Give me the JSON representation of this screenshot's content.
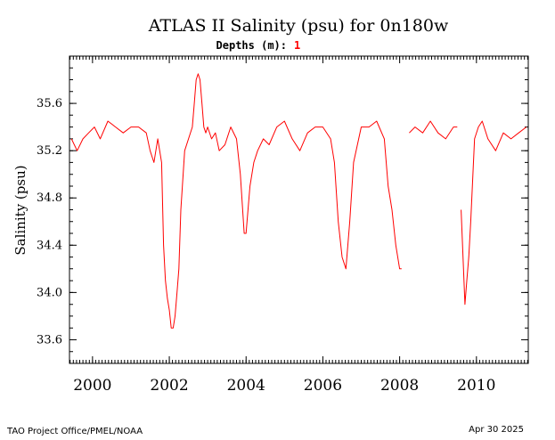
{
  "chart_data": {
    "type": "line",
    "title": "ATLAS II Salinity (psu) for 0n180w",
    "subtitle_label": "Depths (m):",
    "depth_value": "1",
    "ylabel": "Salinity (psu)",
    "xlabel": "",
    "xlim": [
      1999.4,
      2011.35
    ],
    "ylim": [
      33.4,
      36.0
    ],
    "xticks": [
      2000,
      2002,
      2004,
      2006,
      2008,
      2010
    ],
    "xtick_labels": [
      "2000",
      "2002",
      "2004",
      "2006",
      "2008",
      "2010"
    ],
    "yticks": [
      33.6,
      34.0,
      34.4,
      34.8,
      35.2,
      35.6
    ],
    "ytick_labels": [
      "33.6",
      "34.0",
      "34.4",
      "34.8",
      "35.2",
      "35.6"
    ],
    "grid": false,
    "colors": {
      "series": "#ff0000",
      "axis": "#000000",
      "depth": "#ff0000"
    },
    "series": [
      {
        "name": "1",
        "segments": [
          {
            "x": [
              1999.45,
              1999.6,
              1999.75,
              1999.9,
              2000.05,
              2000.2,
              2000.4,
              2000.6,
              2000.8,
              2001.0,
              2001.2,
              2001.4,
              2001.5,
              2001.6,
              2001.7,
              2001.8,
              2001.85,
              2001.9,
              2001.95,
              2002.0,
              2002.05,
              2002.1,
              2002.15,
              2002.2,
              2002.25,
              2002.3,
              2002.4,
              2002.5,
              2002.6,
              2002.65,
              2002.7,
              2002.75,
              2002.8,
              2002.85,
              2002.9,
              2002.95,
              2003.0,
              2003.1,
              2003.2,
              2003.3,
              2003.45,
              2003.6,
              2003.75,
              2003.85,
              2003.95,
              2004.0,
              2004.1,
              2004.2,
              2004.3,
              2004.45,
              2004.6,
              2004.8,
              2005.0,
              2005.2,
              2005.4,
              2005.6,
              2005.8,
              2006.0,
              2006.2,
              2006.3,
              2006.4,
              2006.5,
              2006.6,
              2006.7,
              2006.8,
              2007.0,
              2007.2,
              2007.4,
              2007.6,
              2007.7,
              2007.8,
              2007.9,
              2008.0,
              2008.05
            ],
            "y": [
              35.3,
              35.2,
              35.3,
              35.35,
              35.4,
              35.3,
              35.45,
              35.4,
              35.35,
              35.4,
              35.4,
              35.35,
              35.2,
              35.1,
              35.3,
              35.1,
              34.4,
              34.1,
              33.95,
              33.85,
              33.7,
              33.7,
              33.8,
              34.0,
              34.2,
              34.7,
              35.2,
              35.3,
              35.4,
              35.6,
              35.8,
              35.85,
              35.8,
              35.6,
              35.4,
              35.35,
              35.4,
              35.3,
              35.35,
              35.2,
              35.25,
              35.4,
              35.3,
              35.0,
              34.5,
              34.5,
              34.9,
              35.1,
              35.2,
              35.3,
              35.25,
              35.4,
              35.45,
              35.3,
              35.2,
              35.35,
              35.4,
              35.4,
              35.3,
              35.1,
              34.6,
              34.3,
              34.2,
              34.6,
              35.1,
              35.4,
              35.4,
              35.45,
              35.3,
              34.9,
              34.7,
              34.4,
              34.2,
              34.2
            ]
          },
          {
            "x": [
              2008.25,
              2008.4,
              2008.6,
              2008.8,
              2009.0,
              2009.2,
              2009.4,
              2009.5
            ],
            "y": [
              35.35,
              35.4,
              35.35,
              35.45,
              35.35,
              35.3,
              35.4,
              35.4
            ]
          },
          {
            "x": [
              2009.6,
              2009.7,
              2009.75,
              2009.8,
              2009.85,
              2009.95,
              2010.05,
              2010.15,
              2010.3,
              2010.5,
              2010.7,
              2010.9,
              2011.1,
              2011.3
            ],
            "y": [
              34.7,
              33.9,
              34.1,
              34.3,
              34.6,
              35.3,
              35.4,
              35.45,
              35.3,
              35.2,
              35.35,
              35.3,
              35.35,
              35.4
            ]
          }
        ]
      }
    ]
  },
  "footer": {
    "left": "TAO Project Office/PMEL/NOAA",
    "right": "Apr 30 2025"
  }
}
